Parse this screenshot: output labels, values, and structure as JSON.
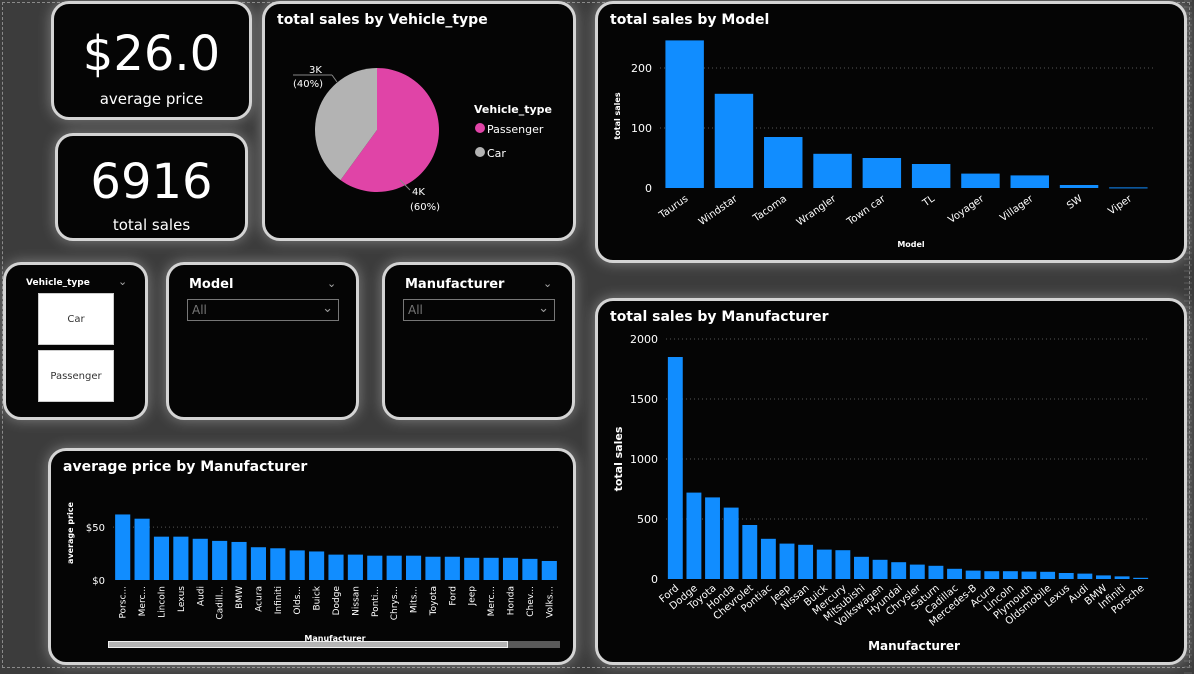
{
  "kpis": {
    "avg_price": {
      "value": "$26.0",
      "label": "average price"
    },
    "total_sales": {
      "value": "6916",
      "label": "total sales"
    }
  },
  "slicers": {
    "vehicle_type": {
      "title": "Vehicle_type",
      "options": [
        "Car",
        "Passenger"
      ]
    },
    "model": {
      "title": "Model",
      "value": "All"
    },
    "manufacturer": {
      "title": "Manufacturer",
      "value": "All"
    }
  },
  "icons": {
    "dropdown": "chevron-down-icon"
  },
  "colors": {
    "bar": "#118dff",
    "passenger": "#e044a7",
    "car": "#b3b3b3",
    "card_border": "#d4d4d4",
    "background": "#050505"
  },
  "pie_chart": {
    "title": "total sales by Vehicle_type",
    "legend_title": "Vehicle_type",
    "slice_labels": {
      "car_value": "3K",
      "car_pct": "(40%)",
      "passenger_value": "4K",
      "passenger_pct": "(60%)"
    }
  },
  "model_chart": {
    "title": "total sales by Model"
  },
  "manufacturer_chart": {
    "title": "total sales by Manufacturer"
  },
  "avgprice_chart": {
    "title": "average price by Manufacturer"
  },
  "chart_data": [
    {
      "type": "pie",
      "title": "total sales by Vehicle_type",
      "legend": "right",
      "categories": [
        "Passenger",
        "Car"
      ],
      "values": [
        4150,
        2766
      ],
      "percentages": [
        60,
        40
      ],
      "data_labels": [
        "4K (60%)",
        "3K (40%)"
      ],
      "colors": [
        "#e044a7",
        "#b3b3b3"
      ]
    },
    {
      "type": "bar",
      "title": "total sales by Model",
      "xlabel": "Model",
      "ylabel": "total sales",
      "ylim": [
        0,
        250
      ],
      "yticks": [
        0,
        100,
        200
      ],
      "grid": true,
      "categories": [
        "Taurus",
        "Windstar",
        "Tacoma",
        "Wrangler",
        "Town car",
        "TL",
        "Voyager",
        "Villager",
        "SW",
        "Viper"
      ],
      "values": [
        246,
        157,
        85,
        57,
        50,
        40,
        24,
        21,
        5,
        1
      ]
    },
    {
      "type": "bar",
      "title": "total sales by Manufacturer",
      "xlabel": "Manufacturer",
      "ylabel": "total sales",
      "ylim": [
        0,
        2000
      ],
      "yticks": [
        0,
        500,
        1000,
        1500,
        2000
      ],
      "grid": true,
      "categories": [
        "Ford",
        "Dodge",
        "Toyota",
        "Honda",
        "Chevrolet",
        "Pontiac",
        "Jeep",
        "Nissan",
        "Buick",
        "Mercury",
        "Mitsubishi",
        "Volkswagen",
        "Hyundai",
        "Chrysler",
        "Saturn",
        "Cadillac",
        "Mercedes-B",
        "Acura",
        "Lincoln",
        "Plymouth",
        "Oldsmobile",
        "Lexus",
        "Audi",
        "BMW",
        "Infiniti",
        "Porsche"
      ],
      "values": [
        1850,
        720,
        680,
        595,
        450,
        335,
        295,
        285,
        245,
        240,
        185,
        160,
        140,
        120,
        110,
        85,
        70,
        65,
        65,
        62,
        60,
        50,
        45,
        30,
        22,
        10
      ]
    },
    {
      "type": "bar",
      "title": "average price by Manufacturer",
      "xlabel": "Manufacturer",
      "ylabel": "average price",
      "ylim": [
        0,
        70
      ],
      "yticks": [
        0,
        50
      ],
      "ytick_labels": [
        "$0",
        "$50"
      ],
      "grid": true,
      "categories": [
        "Porsc...",
        "Merc...",
        "Lincoln",
        "Lexus",
        "Audi",
        "Cadill...",
        "BMW",
        "Acura",
        "Infiniti",
        "Olds...",
        "Buick",
        "Dodge",
        "Nissan",
        "Ponti...",
        "Chrys...",
        "Mits...",
        "Toyota",
        "Ford",
        "Jeep",
        "Merc...",
        "Honda",
        "Chev...",
        "Volks..."
      ],
      "values": [
        62,
        58,
        41,
        41,
        39,
        37,
        36,
        31,
        30,
        28,
        27,
        24,
        24,
        23,
        23,
        23,
        22,
        22,
        21,
        21,
        21,
        20,
        18
      ]
    }
  ]
}
